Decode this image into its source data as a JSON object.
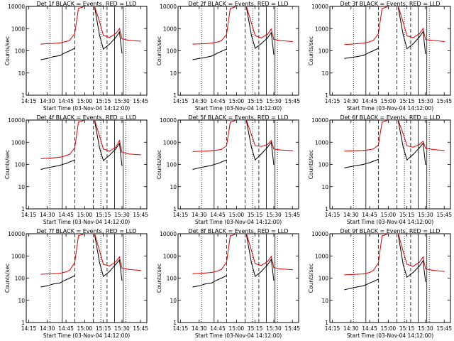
{
  "figure": {
    "time_range": [
      "14:13",
      "15:50"
    ],
    "ylim": [
      1,
      10000
    ],
    "y_scale": "log",
    "x_ticks": [
      "14:15",
      "14:30",
      "14:45",
      "15:00",
      "15:15",
      "15:30",
      "15:45"
    ],
    "y_ticks": [
      "1",
      "10",
      "100",
      "1000",
      "10000"
    ],
    "ylabel": "Counts/sec",
    "xlabel": "Start Time (03-Nov-04 14:12:00)",
    "colors": {
      "events": "#000000",
      "lld": "#e00000"
    },
    "markers": {
      "dotted": [
        "14:32",
        "15:13",
        "15:33"
      ],
      "dashed": [
        "14:52",
        "15:07",
        "15:18"
      ],
      "solid": [
        "14:42",
        "15:24",
        "15:31"
      ]
    }
  },
  "chart_data": [
    {
      "type": "line",
      "title": "Det 1f BLACK = Events, RED = LLD",
      "x": [
        "14:25",
        "14:30",
        "14:35",
        "14:40",
        "14:42",
        "14:45",
        "14:48",
        "14:52",
        "14:55",
        "15:00",
        "15:05",
        "15:08",
        "15:12",
        "15:15",
        "15:20",
        "15:25",
        "15:28",
        "15:30",
        "15:35",
        "15:45"
      ],
      "series": [
        {
          "name": "Events",
          "values": [
            40,
            45,
            55,
            60,
            70,
            85,
            100,
            130,
            null,
            null,
            null,
            9000,
            500,
            120,
            200,
            400,
            700,
            80,
            null,
            null
          ]
        },
        {
          "name": "LLD",
          "values": [
            200,
            210,
            215,
            225,
            240,
            260,
            300,
            600,
            8000,
            10000,
            10000,
            10000,
            2000,
            500,
            400,
            600,
            1000,
            350,
            300,
            270
          ]
        }
      ]
    },
    {
      "type": "line",
      "title": "Det 2f BLACK = Events, RED = LLD",
      "x": [
        "14:25",
        "14:30",
        "14:35",
        "14:40",
        "14:42",
        "14:45",
        "14:48",
        "14:52",
        "14:55",
        "15:00",
        "15:05",
        "15:08",
        "15:12",
        "15:15",
        "15:20",
        "15:25",
        "15:28",
        "15:30",
        "15:35",
        "15:45"
      ],
      "series": [
        {
          "name": "Events",
          "values": [
            40,
            45,
            50,
            58,
            65,
            80,
            95,
            120,
            null,
            null,
            null,
            9000,
            500,
            130,
            210,
            380,
            650,
            70,
            null,
            null
          ]
        },
        {
          "name": "LLD",
          "values": [
            200,
            205,
            210,
            220,
            235,
            250,
            290,
            550,
            8000,
            10000,
            10000,
            10000,
            1800,
            480,
            380,
            560,
            950,
            330,
            290,
            260
          ]
        }
      ]
    },
    {
      "type": "line",
      "title": "Det 3f BLACK = Events, RED = LLD",
      "x": [
        "14:25",
        "14:30",
        "14:35",
        "14:40",
        "14:42",
        "14:45",
        "14:48",
        "14:52",
        "14:55",
        "15:00",
        "15:05",
        "15:08",
        "15:12",
        "15:15",
        "15:20",
        "15:25",
        "15:28",
        "15:30",
        "15:35",
        "15:45"
      ],
      "series": [
        {
          "name": "Events",
          "values": [
            45,
            50,
            55,
            62,
            70,
            85,
            100,
            130,
            null,
            null,
            null,
            9000,
            520,
            125,
            205,
            420,
            720,
            75,
            null,
            null
          ]
        },
        {
          "name": "LLD",
          "values": [
            190,
            200,
            210,
            220,
            235,
            255,
            295,
            580,
            8000,
            10000,
            10000,
            10000,
            1900,
            470,
            390,
            580,
            1000,
            320,
            300,
            260
          ]
        }
      ]
    },
    {
      "type": "line",
      "title": "Det 4f BLACK = Events, RED = LLD",
      "x": [
        "14:25",
        "14:30",
        "14:35",
        "14:40",
        "14:42",
        "14:45",
        "14:48",
        "14:52",
        "14:55",
        "15:00",
        "15:05",
        "15:08",
        "15:12",
        "15:15",
        "15:20",
        "15:25",
        "15:28",
        "15:30",
        "15:35",
        "15:45"
      ],
      "series": [
        {
          "name": "Events",
          "values": [
            60,
            70,
            80,
            90,
            100,
            110,
            130,
            160,
            null,
            null,
            null,
            9000,
            550,
            150,
            260,
            500,
            900,
            90,
            null,
            null
          ]
        },
        {
          "name": "LLD",
          "values": [
            180,
            190,
            200,
            210,
            225,
            250,
            290,
            560,
            8000,
            10000,
            10000,
            10000,
            1900,
            500,
            400,
            600,
            1200,
            360,
            300,
            270
          ]
        }
      ]
    },
    {
      "type": "line",
      "title": "Det 5f BLACK = Events, RED = LLD",
      "x": [
        "14:25",
        "14:30",
        "14:35",
        "14:40",
        "14:42",
        "14:45",
        "14:48",
        "14:52",
        "14:55",
        "15:00",
        "15:05",
        "15:08",
        "15:12",
        "15:15",
        "15:20",
        "15:25",
        "15:28",
        "15:30",
        "15:35",
        "15:45"
      ],
      "series": [
        {
          "name": "Events",
          "values": [
            60,
            70,
            80,
            90,
            100,
            110,
            130,
            160,
            null,
            null,
            null,
            9000,
            600,
            160,
            300,
            600,
            1000,
            100,
            null,
            null
          ]
        },
        {
          "name": "LLD",
          "values": [
            380,
            390,
            400,
            420,
            430,
            450,
            480,
            700,
            8000,
            10000,
            10000,
            10000,
            2200,
            700,
            650,
            800,
            1200,
            500,
            450,
            420
          ]
        }
      ]
    },
    {
      "type": "line",
      "title": "Det 6f BLACK = Events, RED = LLD",
      "x": [
        "14:25",
        "14:30",
        "14:35",
        "14:40",
        "14:42",
        "14:45",
        "14:48",
        "14:52",
        "14:55",
        "15:00",
        "15:05",
        "15:08",
        "15:12",
        "15:15",
        "15:20",
        "15:25",
        "15:28",
        "15:30",
        "15:35",
        "15:45"
      ],
      "series": [
        {
          "name": "Events",
          "values": [
            70,
            80,
            90,
            100,
            110,
            120,
            140,
            170,
            null,
            null,
            null,
            9000,
            600,
            160,
            280,
            560,
            900,
            100,
            null,
            null
          ]
        },
        {
          "name": "LLD",
          "values": [
            400,
            410,
            420,
            430,
            440,
            460,
            500,
            750,
            8000,
            10000,
            10000,
            10000,
            2400,
            700,
            600,
            800,
            1100,
            550,
            480,
            420
          ]
        }
      ]
    },
    {
      "type": "line",
      "title": "Det 7f BLACK = Events, RED = LLD",
      "x": [
        "14:25",
        "14:30",
        "14:35",
        "14:40",
        "14:42",
        "14:45",
        "14:48",
        "14:52",
        "14:55",
        "15:00",
        "15:05",
        "15:08",
        "15:12",
        "15:15",
        "15:20",
        "15:25",
        "15:28",
        "15:30",
        "15:35",
        "15:45"
      ],
      "series": [
        {
          "name": "Events",
          "values": [
            40,
            45,
            55,
            60,
            70,
            85,
            100,
            130,
            null,
            null,
            null,
            9000,
            500,
            120,
            200,
            420,
            650,
            80,
            null,
            null
          ]
        },
        {
          "name": "LLD",
          "values": [
            150,
            155,
            160,
            165,
            175,
            190,
            230,
            500,
            8000,
            10000,
            10000,
            10000,
            1700,
            420,
            350,
            550,
            900,
            280,
            250,
            220
          ]
        }
      ]
    },
    {
      "type": "line",
      "title": "Det 8f BLACK = Events, RED = LLD",
      "x": [
        "14:25",
        "14:30",
        "14:35",
        "14:40",
        "14:42",
        "14:45",
        "14:48",
        "14:52",
        "14:55",
        "15:00",
        "15:05",
        "15:08",
        "15:12",
        "15:15",
        "15:20",
        "15:25",
        "15:28",
        "15:30",
        "15:35",
        "15:45"
      ],
      "series": [
        {
          "name": "Events",
          "values": [
            40,
            45,
            55,
            60,
            70,
            85,
            100,
            130,
            null,
            null,
            null,
            9000,
            500,
            120,
            200,
            400,
            700,
            80,
            null,
            null
          ]
        },
        {
          "name": "LLD",
          "values": [
            160,
            165,
            170,
            180,
            190,
            210,
            250,
            520,
            8000,
            10000,
            10000,
            10000,
            1800,
            450,
            370,
            560,
            950,
            300,
            260,
            240
          ]
        }
      ]
    },
    {
      "type": "line",
      "title": "Det 9f BLACK = Events, RED = LLD",
      "x": [
        "14:25",
        "14:30",
        "14:35",
        "14:40",
        "14:42",
        "14:45",
        "14:48",
        "14:52",
        "14:55",
        "15:00",
        "15:05",
        "15:08",
        "15:12",
        "15:15",
        "15:20",
        "15:25",
        "15:28",
        "15:30",
        "15:35",
        "15:45"
      ],
      "series": [
        {
          "name": "Events",
          "values": [
            30,
            35,
            40,
            45,
            50,
            60,
            70,
            90,
            null,
            null,
            null,
            9000,
            400,
            110,
            180,
            350,
            600,
            70,
            null,
            null
          ]
        },
        {
          "name": "LLD",
          "values": [
            140,
            145,
            150,
            155,
            165,
            180,
            220,
            480,
            8000,
            10000,
            10000,
            10000,
            1600,
            420,
            340,
            520,
            900,
            260,
            230,
            200
          ]
        }
      ]
    }
  ]
}
